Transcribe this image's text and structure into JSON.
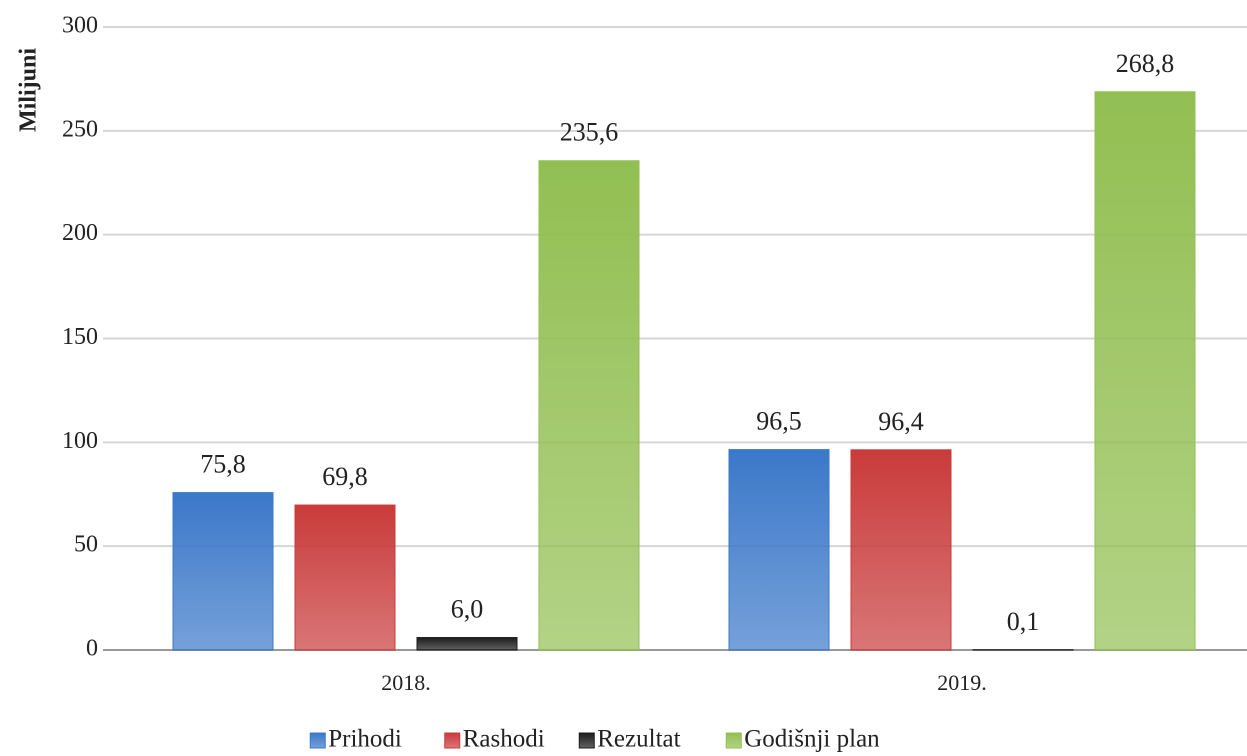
{
  "chart_data": {
    "type": "bar",
    "y_label": "Milijuni",
    "categories": [
      "2018.",
      "2019."
    ],
    "series": [
      {
        "name": "Prihodi",
        "color": "#3b78c9",
        "values": [
          75.8,
          96.5
        ],
        "value_labels": [
          "75,8",
          "96,5"
        ]
      },
      {
        "name": "Rashodi",
        "color": "#c93b3b",
        "values": [
          69.8,
          96.4
        ],
        "value_labels": [
          "69,8",
          "96,4"
        ]
      },
      {
        "name": "Rezultat",
        "color": "#1c1c1c",
        "values": [
          6.0,
          0.1
        ],
        "value_labels": [
          "6,0",
          "0,1"
        ]
      },
      {
        "name": "Godišnji plan",
        "color": "#92bf52",
        "values": [
          235.6,
          268.8
        ],
        "value_labels": [
          "235,6",
          "268,8"
        ]
      }
    ],
    "ylim": [
      0,
      300
    ],
    "yticks": [
      0,
      50,
      100,
      150,
      200,
      250,
      300
    ],
    "grid": true,
    "legend": "bottom"
  }
}
